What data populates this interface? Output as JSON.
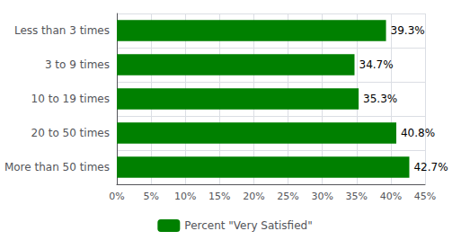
{
  "chart_data": {
    "type": "bar",
    "orientation": "horizontal",
    "categories": [
      "Less than 3 times",
      "3 to 9 times",
      "10 to 19 times",
      "20 to 50 times",
      "More than 50 times"
    ],
    "series": [
      {
        "name": "Percent \"Very Satisfied\"",
        "color": "#008000",
        "values": [
          39.3,
          34.7,
          35.3,
          40.8,
          42.7
        ],
        "value_labels": [
          "39.3%",
          "34.7%",
          "35.3%",
          "40.8%",
          "42.7%"
        ]
      }
    ],
    "xlim": [
      0,
      45
    ],
    "xticks": [
      {
        "value": 0,
        "label": "0%"
      },
      {
        "value": 5,
        "label": "5%"
      },
      {
        "value": 10,
        "label": "10%"
      },
      {
        "value": 15,
        "label": "15%"
      },
      {
        "value": 20,
        "label": "20%"
      },
      {
        "value": 25,
        "label": "25%"
      },
      {
        "value": 30,
        "label": "30%"
      },
      {
        "value": 35,
        "label": "35%"
      },
      {
        "value": 40,
        "label": "40%"
      },
      {
        "value": 45,
        "label": "45%"
      }
    ],
    "grid": true,
    "legend": "bottom",
    "data_labels": true
  }
}
